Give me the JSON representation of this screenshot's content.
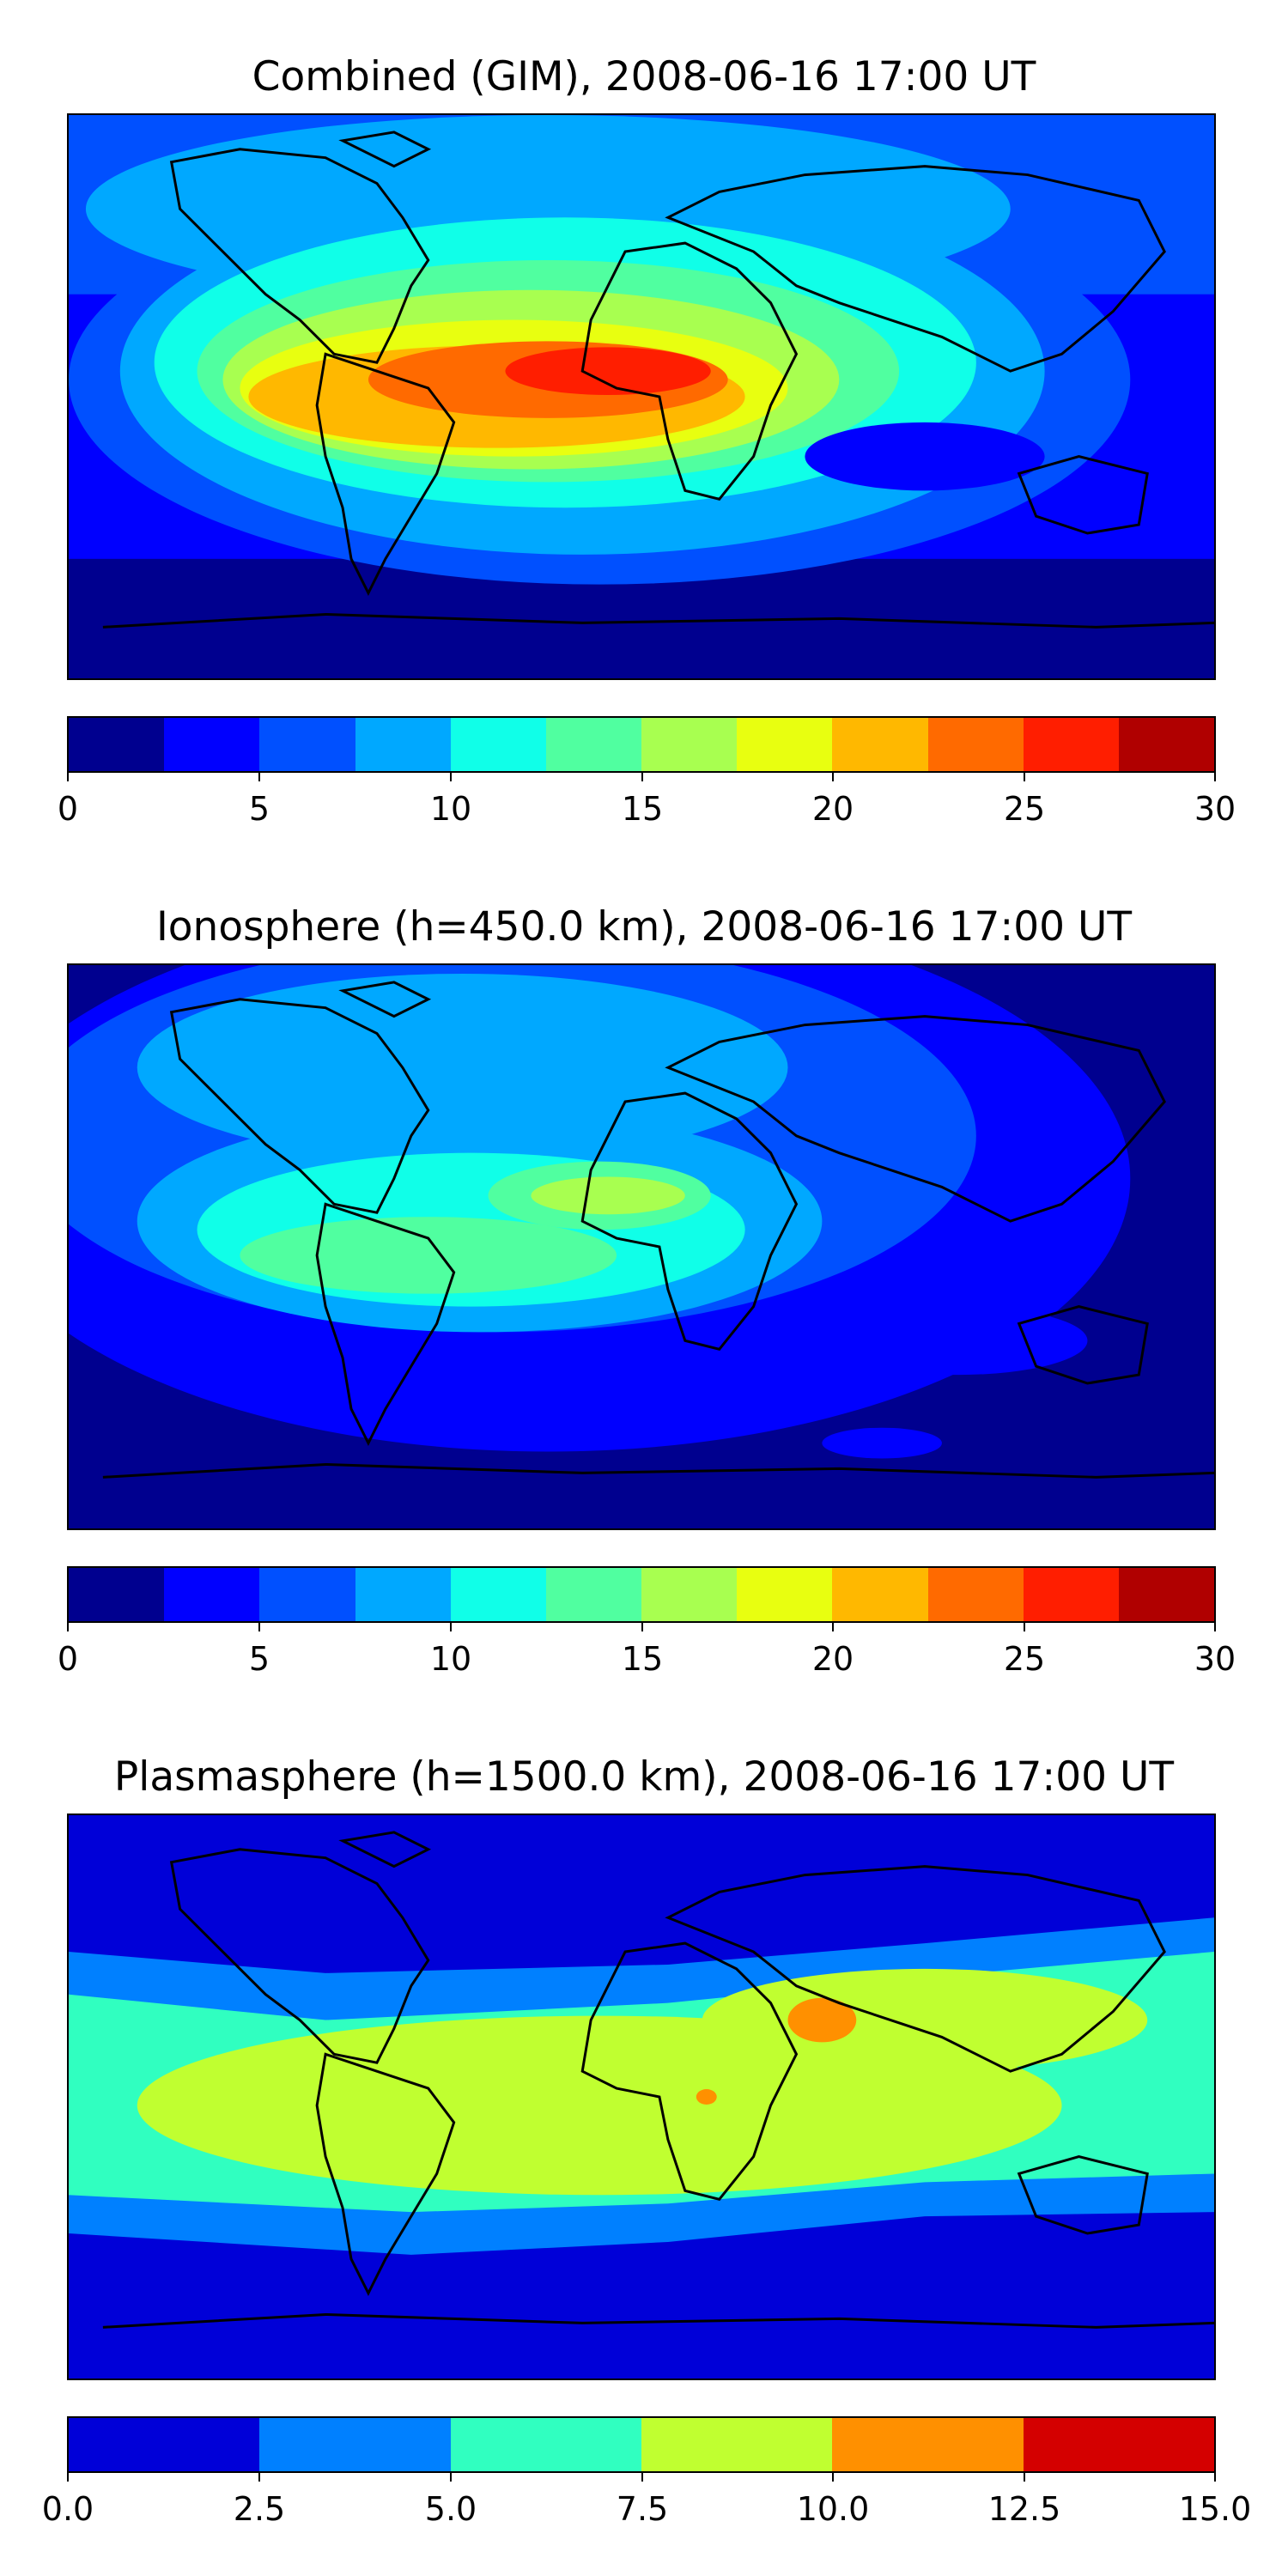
{
  "panels": [
    {
      "title": "Combined (GIM), 2008-06-16 17:00 UT",
      "colorbar": {
        "range": [
          0,
          30
        ],
        "colors": [
          "#00008f",
          "#0000ff",
          "#0050ff",
          "#00a8ff",
          "#10ffe8",
          "#50ffa0",
          "#a8ff50",
          "#e8ff10",
          "#ffb800",
          "#ff6a00",
          "#ff1e00",
          "#b00000"
        ],
        "ticks": [
          "0",
          "5",
          "10",
          "15",
          "20",
          "25",
          "30"
        ]
      }
    },
    {
      "title": "Ionosphere  (h=450.0 km), 2008-06-16 17:00 UT",
      "colorbar": {
        "range": [
          0,
          30
        ],
        "colors": [
          "#00008f",
          "#0000ff",
          "#0050ff",
          "#00a8ff",
          "#10ffe8",
          "#50ffa0",
          "#a8ff50",
          "#e8ff10",
          "#ffb800",
          "#ff6a00",
          "#ff1e00",
          "#b00000"
        ],
        "ticks": [
          "0",
          "5",
          "10",
          "15",
          "20",
          "25",
          "30"
        ]
      }
    },
    {
      "title": "Plasmasphere (h=1500.0 km), 2008-06-16 17:00 UT",
      "colorbar": {
        "range": [
          0,
          15
        ],
        "colors": [
          "#0000d8",
          "#0080ff",
          "#30ffc0",
          "#c0ff30",
          "#ff9000",
          "#d40000"
        ],
        "ticks": [
          "0.0",
          "2.5",
          "5.0",
          "7.5",
          "10.0",
          "12.5",
          "15.0"
        ]
      }
    }
  ]
}
